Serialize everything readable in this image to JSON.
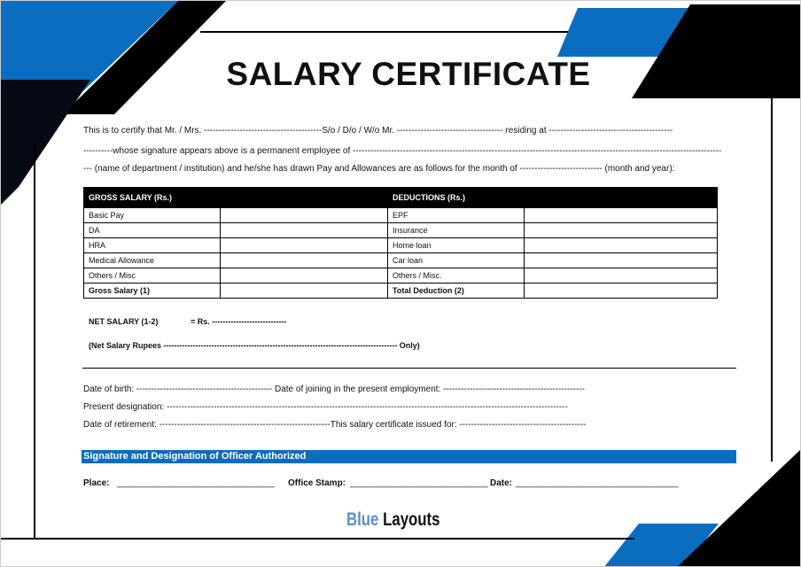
{
  "title": "SALARY CERTIFICATE",
  "intro": {
    "line1": "This is to certify that Mr. / Mrs. ----------------------------------------S/o / D/o / W/o Mr. ------------------------------------ residing at ------------------------------------------",
    "line2": "----------whose signature appears above is a permanent employee of -----------------------------------------------------------------------------------------------------------------------------",
    "line3": "--- (name of department / institution) and he/she has drawn Pay and Allowances are as follows for the month of ---------------------------- (month and year):"
  },
  "table": {
    "headers": [
      "GROSS SALARY (Rs.)",
      "DEDUCTIONS (Rs.)"
    ],
    "rows": [
      [
        "Basic Pay",
        "EPF"
      ],
      [
        "DA",
        "Insurance"
      ],
      [
        "HRA",
        "Home loan"
      ],
      [
        "Medical Allowance",
        "Car loan"
      ],
      [
        "Others / Misc",
        "Others / Misc."
      ],
      [
        "Gross Salary (1)",
        "Total Deduction (2)"
      ]
    ]
  },
  "net": {
    "label": "NET SALARY (1-2)",
    "value": "= Rs. ----------------------------",
    "words": "(Net Salary Rupees ---------------------------------------------------------------------------------------- Only)"
  },
  "details": {
    "line1": "Date of birth: ---------------------------------------------- Date of joining in the present employment: ------------------------------------------------",
    "line2": "Present designation: ----------------------------------------------------------------------------------------------------------------------------------------",
    "line3": "Date of retirement: ----------------------------------------------------------This salary certificate issued for: -------------------------------------------"
  },
  "signature_bar": "Signature and Designation of Officer Authorized",
  "footer": {
    "place": "Place:",
    "place_line": "________________________________",
    "stamp": "Office Stamp:",
    "stamp_line": "____________________________",
    "date": "Date:",
    "date_line": "_________________________________"
  },
  "logo": {
    "blue": "Blue",
    "dark": "Layouts"
  },
  "colors": {
    "accent": "#0b6dbf",
    "dark": "#000000"
  }
}
